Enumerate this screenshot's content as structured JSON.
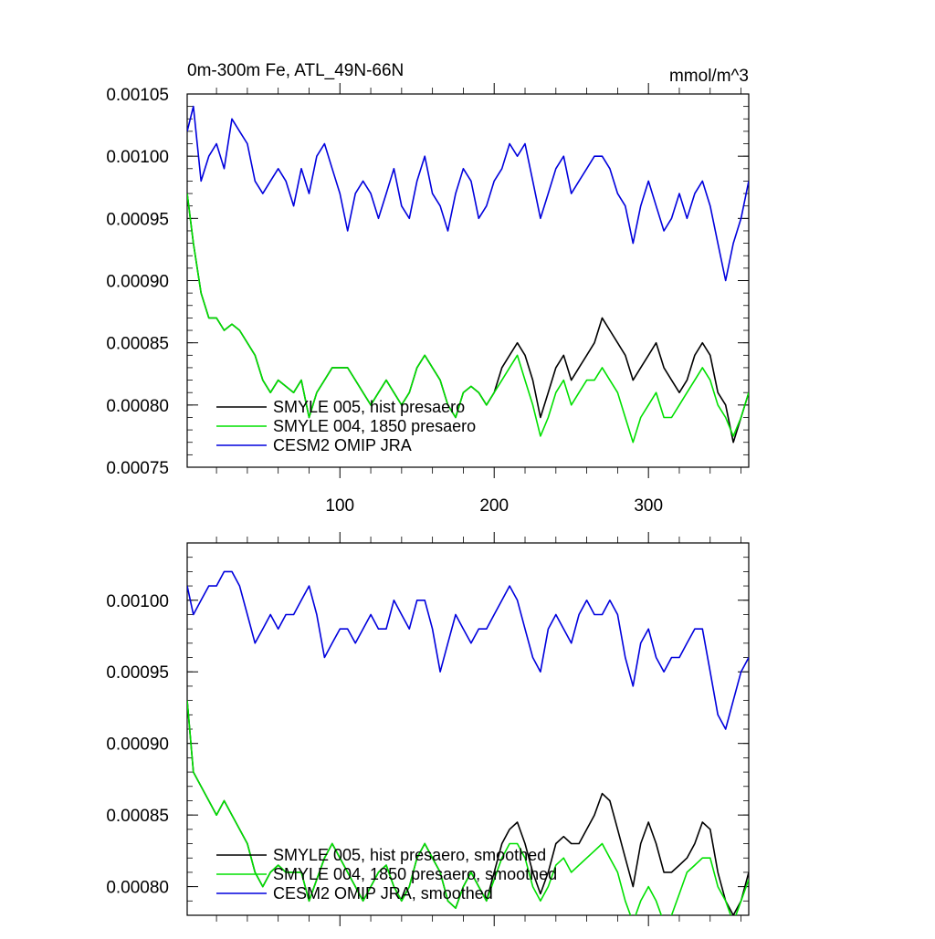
{
  "chart_data": [
    {
      "type": "line",
      "title_left": "0m-300m Fe, ATL_49N-66N",
      "title_right": "mmol/m^3",
      "xlabel": "",
      "ylabel": "",
      "xlim": [
        1,
        365
      ],
      "ylim": [
        0.00075,
        0.00105
      ],
      "x_ticks": [
        100,
        200,
        300
      ],
      "x_tick_labels": [
        "100",
        "200",
        "300"
      ],
      "y_ticks": [
        0.00075,
        0.0008,
        0.00085,
        0.0009,
        0.00095,
        0.001,
        0.00105
      ],
      "y_tick_labels": [
        "0.00075",
        "0.00080",
        "0.00085",
        "0.00090",
        "0.00095",
        "0.00100",
        "0.00105"
      ],
      "grid": false,
      "legend_position": "bottom-left",
      "series": [
        {
          "name": "SMYLE 005, hist presaero",
          "color": "#000000",
          "x": [
            1,
            5,
            10,
            15,
            20,
            25,
            30,
            35,
            40,
            45,
            50,
            55,
            60,
            65,
            70,
            75,
            80,
            85,
            90,
            95,
            100,
            105,
            110,
            115,
            120,
            125,
            130,
            135,
            140,
            145,
            150,
            155,
            160,
            165,
            170,
            175,
            180,
            185,
            190,
            195,
            200,
            205,
            210,
            215,
            220,
            225,
            230,
            235,
            240,
            245,
            250,
            255,
            260,
            265,
            270,
            275,
            280,
            285,
            290,
            295,
            300,
            305,
            310,
            315,
            320,
            325,
            330,
            335,
            340,
            345,
            350,
            355,
            360,
            365
          ],
          "values": [
            0.00097,
            0.00093,
            0.00089,
            0.00087,
            0.00087,
            0.00086,
            0.000865,
            0.00086,
            0.00085,
            0.00084,
            0.00082,
            0.00081,
            0.00082,
            0.000815,
            0.00081,
            0.00082,
            0.00079,
            0.00081,
            0.00082,
            0.00083,
            0.00083,
            0.00083,
            0.00082,
            0.00081,
            0.0008,
            0.00081,
            0.00082,
            0.00081,
            0.0008,
            0.00081,
            0.00083,
            0.00084,
            0.00083,
            0.00082,
            0.0008,
            0.00079,
            0.00081,
            0.000815,
            0.00081,
            0.0008,
            0.00081,
            0.00083,
            0.00084,
            0.00085,
            0.00084,
            0.00082,
            0.00079,
            0.00081,
            0.00083,
            0.00084,
            0.00082,
            0.00083,
            0.00084,
            0.00085,
            0.00087,
            0.00086,
            0.00085,
            0.00084,
            0.00082,
            0.00083,
            0.00084,
            0.00085,
            0.00083,
            0.00082,
            0.00081,
            0.00082,
            0.00084,
            0.00085,
            0.00084,
            0.00081,
            0.0008,
            0.00077,
            0.00079,
            0.00081
          ]
        },
        {
          "name": "SMYLE 004, 1850 presaero",
          "color": "#00e000",
          "x": [
            1,
            5,
            10,
            15,
            20,
            25,
            30,
            35,
            40,
            45,
            50,
            55,
            60,
            65,
            70,
            75,
            80,
            85,
            90,
            95,
            100,
            105,
            110,
            115,
            120,
            125,
            130,
            135,
            140,
            145,
            150,
            155,
            160,
            165,
            170,
            175,
            180,
            185,
            190,
            195,
            200,
            205,
            210,
            215,
            220,
            225,
            230,
            235,
            240,
            245,
            250,
            255,
            260,
            265,
            270,
            275,
            280,
            285,
            290,
            295,
            300,
            305,
            310,
            315,
            320,
            325,
            330,
            335,
            340,
            345,
            350,
            355,
            360,
            365
          ],
          "values": [
            0.00097,
            0.00093,
            0.00089,
            0.00087,
            0.00087,
            0.00086,
            0.000865,
            0.00086,
            0.00085,
            0.00084,
            0.00082,
            0.00081,
            0.00082,
            0.000815,
            0.00081,
            0.00082,
            0.00079,
            0.00081,
            0.00082,
            0.00083,
            0.00083,
            0.00083,
            0.00082,
            0.00081,
            0.0008,
            0.00081,
            0.00082,
            0.00081,
            0.0008,
            0.00081,
            0.00083,
            0.00084,
            0.00083,
            0.00082,
            0.0008,
            0.00079,
            0.00081,
            0.000815,
            0.00081,
            0.0008,
            0.00081,
            0.00082,
            0.00083,
            0.00084,
            0.00082,
            0.0008,
            0.000775,
            0.00079,
            0.00081,
            0.00082,
            0.0008,
            0.00081,
            0.00082,
            0.00082,
            0.00083,
            0.00082,
            0.00081,
            0.00079,
            0.00077,
            0.00079,
            0.0008,
            0.00081,
            0.00079,
            0.00079,
            0.0008,
            0.00081,
            0.00082,
            0.00083,
            0.00082,
            0.0008,
            0.00079,
            0.000775,
            0.00079,
            0.00081
          ]
        },
        {
          "name": "CESM2 OMIP JRA",
          "color": "#0000dd",
          "x": [
            1,
            5,
            10,
            15,
            20,
            25,
            30,
            35,
            40,
            45,
            50,
            55,
            60,
            65,
            70,
            75,
            80,
            85,
            90,
            95,
            100,
            105,
            110,
            115,
            120,
            125,
            130,
            135,
            140,
            145,
            150,
            155,
            160,
            165,
            170,
            175,
            180,
            185,
            190,
            195,
            200,
            205,
            210,
            215,
            220,
            225,
            230,
            235,
            240,
            245,
            250,
            255,
            260,
            265,
            270,
            275,
            280,
            285,
            290,
            295,
            300,
            305,
            310,
            315,
            320,
            325,
            330,
            335,
            340,
            345,
            350,
            355,
            360,
            365
          ],
          "values": [
            0.00102,
            0.00104,
            0.00098,
            0.001,
            0.00101,
            0.00099,
            0.00103,
            0.00102,
            0.00101,
            0.00098,
            0.00097,
            0.00098,
            0.00099,
            0.00098,
            0.00096,
            0.00099,
            0.00097,
            0.001,
            0.00101,
            0.00099,
            0.00097,
            0.00094,
            0.00097,
            0.00098,
            0.00097,
            0.00095,
            0.00097,
            0.00099,
            0.00096,
            0.00095,
            0.00098,
            0.001,
            0.00097,
            0.00096,
            0.00094,
            0.00097,
            0.00099,
            0.00098,
            0.00095,
            0.00096,
            0.00098,
            0.00099,
            0.00101,
            0.001,
            0.00101,
            0.00098,
            0.00095,
            0.00097,
            0.00099,
            0.001,
            0.00097,
            0.00098,
            0.00099,
            0.001,
            0.001,
            0.00099,
            0.00097,
            0.00096,
            0.00093,
            0.00096,
            0.00098,
            0.00096,
            0.00094,
            0.00095,
            0.00097,
            0.00095,
            0.00097,
            0.00098,
            0.00096,
            0.00093,
            0.0009,
            0.00093,
            0.00095,
            0.00098
          ]
        }
      ]
    },
    {
      "type": "line",
      "title_left": "",
      "title_right": "",
      "xlabel": "",
      "ylabel": "",
      "xlim": [
        1,
        365
      ],
      "ylim": [
        0.00078,
        0.00104
      ],
      "x_ticks": [
        100,
        200,
        300
      ],
      "x_tick_labels": [],
      "y_ticks": [
        0.0008,
        0.00085,
        0.0009,
        0.00095,
        0.001
      ],
      "y_tick_labels": [
        "0.00080",
        "0.00085",
        "0.00090",
        "0.00095",
        "0.00100"
      ],
      "grid": false,
      "legend_position": "bottom-left",
      "series": [
        {
          "name": "SMYLE 005, hist presaero, smoothed",
          "color": "#000000",
          "x": [
            1,
            5,
            10,
            15,
            20,
            25,
            30,
            35,
            40,
            45,
            50,
            55,
            60,
            65,
            70,
            75,
            80,
            85,
            90,
            95,
            100,
            105,
            110,
            115,
            120,
            125,
            130,
            135,
            140,
            145,
            150,
            155,
            160,
            165,
            170,
            175,
            180,
            185,
            190,
            195,
            200,
            205,
            210,
            215,
            220,
            225,
            230,
            235,
            240,
            245,
            250,
            255,
            260,
            265,
            270,
            275,
            280,
            285,
            290,
            295,
            300,
            305,
            310,
            315,
            320,
            325,
            330,
            335,
            340,
            345,
            350,
            355,
            360,
            365
          ],
          "values": [
            0.00093,
            0.00088,
            0.00087,
            0.00086,
            0.00085,
            0.00086,
            0.00085,
            0.00084,
            0.00083,
            0.00081,
            0.0008,
            0.00081,
            0.000815,
            0.00081,
            0.00081,
            0.00081,
            0.00079,
            0.000805,
            0.00082,
            0.00083,
            0.00082,
            0.00081,
            0.0008,
            0.00079,
            0.0008,
            0.00081,
            0.000815,
            0.0008,
            0.00079,
            0.0008,
            0.00082,
            0.00083,
            0.00082,
            0.00081,
            0.00079,
            0.000785,
            0.0008,
            0.00081,
            0.0008,
            0.00079,
            0.00081,
            0.00083,
            0.00084,
            0.000845,
            0.00083,
            0.00081,
            0.000795,
            0.00081,
            0.00083,
            0.000835,
            0.00083,
            0.00083,
            0.00084,
            0.00085,
            0.000865,
            0.00086,
            0.00084,
            0.00082,
            0.0008,
            0.00083,
            0.000845,
            0.00083,
            0.00081,
            0.00081,
            0.000815,
            0.00082,
            0.00083,
            0.000845,
            0.00084,
            0.00081,
            0.00079,
            0.00078,
            0.00079,
            0.00081
          ]
        },
        {
          "name": "SMYLE 004, 1850 presaero, smoothed",
          "color": "#00e000",
          "x": [
            1,
            5,
            10,
            15,
            20,
            25,
            30,
            35,
            40,
            45,
            50,
            55,
            60,
            65,
            70,
            75,
            80,
            85,
            90,
            95,
            100,
            105,
            110,
            115,
            120,
            125,
            130,
            135,
            140,
            145,
            150,
            155,
            160,
            165,
            170,
            175,
            180,
            185,
            190,
            195,
            200,
            205,
            210,
            215,
            220,
            225,
            230,
            235,
            240,
            245,
            250,
            255,
            260,
            265,
            270,
            275,
            280,
            285,
            290,
            295,
            300,
            305,
            310,
            315,
            320,
            325,
            330,
            335,
            340,
            345,
            350,
            355,
            360,
            365
          ],
          "values": [
            0.00093,
            0.00088,
            0.00087,
            0.00086,
            0.00085,
            0.00086,
            0.00085,
            0.00084,
            0.00083,
            0.00081,
            0.0008,
            0.00081,
            0.000815,
            0.00081,
            0.00081,
            0.00081,
            0.00079,
            0.000805,
            0.00082,
            0.00083,
            0.00082,
            0.00081,
            0.0008,
            0.00079,
            0.0008,
            0.00081,
            0.000815,
            0.0008,
            0.00079,
            0.0008,
            0.00082,
            0.00083,
            0.00082,
            0.00081,
            0.00079,
            0.000785,
            0.0008,
            0.00081,
            0.0008,
            0.00079,
            0.000805,
            0.00082,
            0.00083,
            0.00083,
            0.00082,
            0.0008,
            0.00079,
            0.0008,
            0.000815,
            0.00082,
            0.00081,
            0.000815,
            0.00082,
            0.000825,
            0.00083,
            0.00082,
            0.00081,
            0.00079,
            0.000775,
            0.00079,
            0.0008,
            0.00079,
            0.000775,
            0.00078,
            0.000795,
            0.00081,
            0.000815,
            0.00082,
            0.00082,
            0.0008,
            0.00079,
            0.000775,
            0.00079,
            0.000805
          ]
        },
        {
          "name": "CESM2 OMIP JRA, smoothed",
          "color": "#0000dd",
          "x": [
            1,
            5,
            10,
            15,
            20,
            25,
            30,
            35,
            40,
            45,
            50,
            55,
            60,
            65,
            70,
            75,
            80,
            85,
            90,
            95,
            100,
            105,
            110,
            115,
            120,
            125,
            130,
            135,
            140,
            145,
            150,
            155,
            160,
            165,
            170,
            175,
            180,
            185,
            190,
            195,
            200,
            205,
            210,
            215,
            220,
            225,
            230,
            235,
            240,
            245,
            250,
            255,
            260,
            265,
            270,
            275,
            280,
            285,
            290,
            295,
            300,
            305,
            310,
            315,
            320,
            325,
            330,
            335,
            340,
            345,
            350,
            355,
            360,
            365
          ],
          "values": [
            0.00101,
            0.00099,
            0.001,
            0.00101,
            0.00101,
            0.00102,
            0.00102,
            0.00101,
            0.00099,
            0.00097,
            0.00098,
            0.00099,
            0.00098,
            0.00099,
            0.00099,
            0.001,
            0.00101,
            0.00099,
            0.00096,
            0.00097,
            0.00098,
            0.00098,
            0.00097,
            0.00098,
            0.00099,
            0.00098,
            0.00098,
            0.001,
            0.00099,
            0.00098,
            0.001,
            0.001,
            0.00098,
            0.00095,
            0.00097,
            0.00099,
            0.00098,
            0.00097,
            0.00098,
            0.00098,
            0.00099,
            0.001,
            0.00101,
            0.001,
            0.00098,
            0.00096,
            0.00095,
            0.00098,
            0.00099,
            0.00098,
            0.00097,
            0.00099,
            0.001,
            0.00099,
            0.00099,
            0.001,
            0.00099,
            0.00096,
            0.00094,
            0.00097,
            0.00098,
            0.00096,
            0.00095,
            0.00096,
            0.00096,
            0.00097,
            0.00098,
            0.00098,
            0.00095,
            0.00092,
            0.00091,
            0.00093,
            0.00095,
            0.00096
          ]
        }
      ]
    }
  ]
}
